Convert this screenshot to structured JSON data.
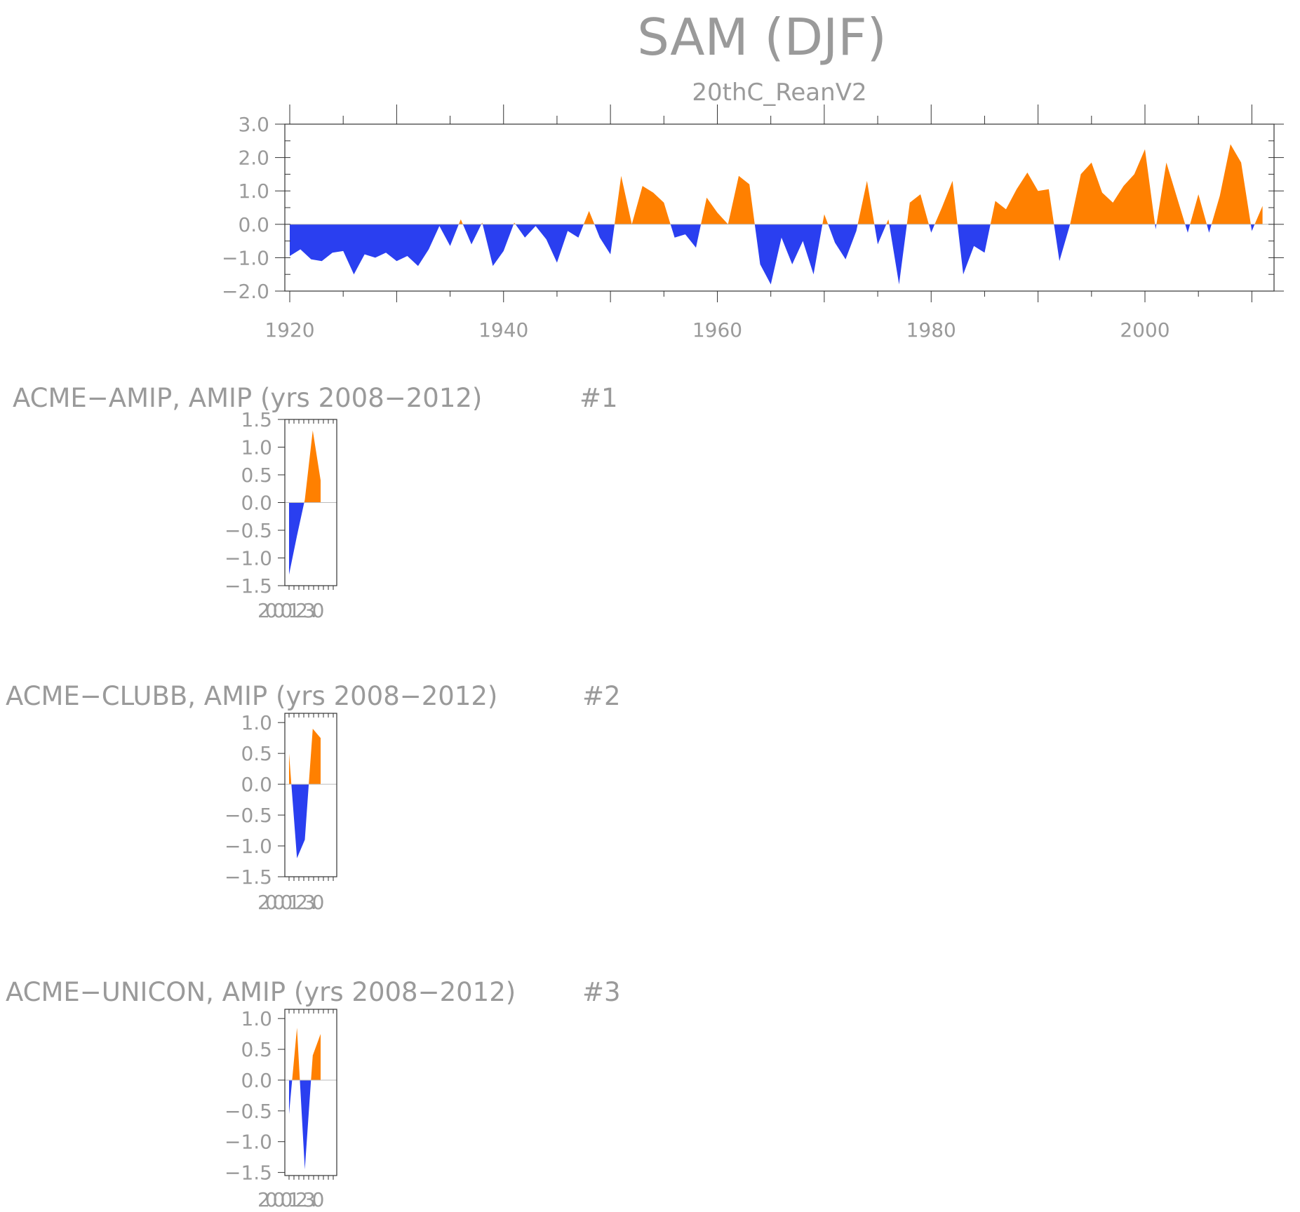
{
  "title": "SAM (DJF)",
  "colors": {
    "positive": "#ff8000",
    "negative": "#2a3ff0",
    "text": "#9a9a9a",
    "axis": "#333333"
  },
  "chart_data": [
    {
      "type": "area",
      "subtitle": "20thC_ReanV2",
      "x_ticks": [
        1920,
        1940,
        1960,
        1980,
        2000
      ],
      "y_ticks": [
        "3.0",
        "2.0",
        "1.0",
        "0.0",
        "−1.0",
        "−2.0"
      ],
      "xlim": [
        1918,
        2013
      ],
      "ylim": [
        -2.0,
        3.0
      ],
      "x_start": 1920,
      "y": [
        -0.95,
        -0.75,
        -1.05,
        -1.1,
        -0.85,
        -0.8,
        -1.5,
        -0.9,
        -1.0,
        -0.85,
        -1.1,
        -0.95,
        -1.25,
        -0.75,
        -0.05,
        -0.65,
        0.15,
        -0.6,
        0.05,
        -1.25,
        -0.8,
        0.05,
        -0.4,
        -0.05,
        -0.45,
        -1.15,
        -0.2,
        -0.4,
        0.4,
        -0.4,
        -0.9,
        1.45,
        0.0,
        1.15,
        0.95,
        0.65,
        -0.4,
        -0.3,
        -0.7,
        0.8,
        0.35,
        0.0,
        1.45,
        1.2,
        -1.2,
        -1.8,
        -0.4,
        -1.2,
        -0.5,
        -1.5,
        0.3,
        -0.55,
        -1.05,
        -0.2,
        1.3,
        -0.6,
        0.15,
        -1.8,
        0.65,
        0.9,
        -0.25,
        0.5,
        1.3,
        -1.5,
        -0.65,
        -0.85,
        0.7,
        0.45,
        1.05,
        1.55,
        1.0,
        1.05,
        -1.1,
        0.0,
        1.5,
        1.85,
        0.95,
        0.65,
        1.15,
        1.5,
        2.25,
        -0.15,
        1.85,
        0.8,
        -0.25,
        0.9,
        -0.25,
        0.85,
        2.4,
        1.85,
        -0.2,
        0.55
      ]
    },
    {
      "type": "area",
      "title": "ACME−AMIP, AMIP (yrs 2008−2012)",
      "label": "#1",
      "y_ticks": [
        "1.5",
        "1.0",
        "0.5",
        "0.0",
        "−0.5",
        "−1.0",
        "−1.5"
      ],
      "ylim": [
        -1.5,
        1.5
      ],
      "x_tick_label": "2000123.0",
      "x": [
        2008,
        2009,
        2010,
        2011,
        2012
      ],
      "y": [
        -1.3,
        -0.6,
        0.05,
        1.3,
        0.4
      ]
    },
    {
      "type": "area",
      "title": "ACME−CLUBB, AMIP (yrs 2008−2012)",
      "label": "#2",
      "y_ticks": [
        "1.0",
        "0.5",
        "0.0",
        "−0.5",
        "−1.0",
        "−1.5"
      ],
      "ylim": [
        -1.5,
        1.15
      ],
      "x_tick_label": "2000123.0",
      "x": [
        2008,
        2009,
        2010,
        2011,
        2012
      ],
      "y": [
        0.5,
        -1.2,
        -0.9,
        0.9,
        0.75
      ]
    },
    {
      "type": "area",
      "title": "ACME−UNICON, AMIP (yrs 2008−2012)",
      "label": "#3",
      "y_ticks": [
        "1.0",
        "0.5",
        "0.0",
        "−0.5",
        "−1.0",
        "−1.5"
      ],
      "ylim": [
        -1.55,
        1.15
      ],
      "x_tick_label": "2000123.0",
      "x": [
        2008,
        2009,
        2010,
        2011,
        2012
      ],
      "y": [
        -0.55,
        0.85,
        -1.45,
        0.4,
        0.75
      ]
    }
  ]
}
